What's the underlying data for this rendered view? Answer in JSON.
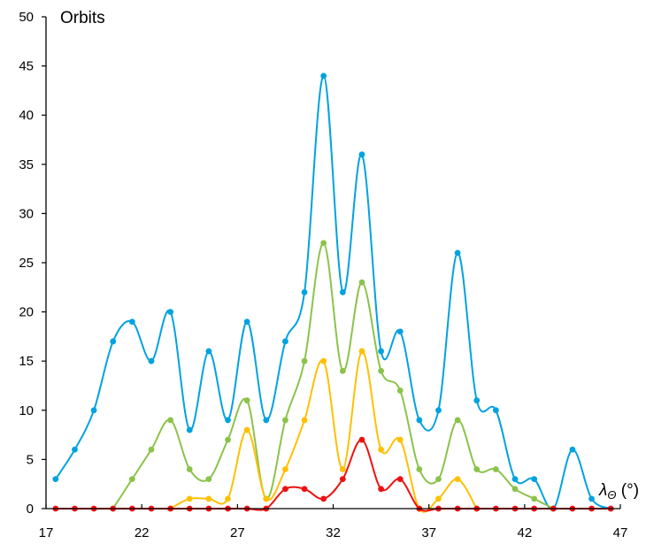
{
  "chart_data": {
    "type": "line",
    "title": "",
    "ylabel": "Orbits",
    "xlabel_symbol": "λ",
    "xlabel_subscript": "Θ",
    "xlabel_unit": " (°)",
    "xlim": [
      17,
      47
    ],
    "ylim": [
      0,
      50
    ],
    "xticks": [
      17,
      22,
      27,
      32,
      37,
      42,
      47
    ],
    "yticks": [
      0,
      5,
      10,
      15,
      20,
      25,
      30,
      35,
      40,
      45,
      50
    ],
    "grid": false,
    "smooth": true,
    "x": [
      17.5,
      18.5,
      19.5,
      20.5,
      21.5,
      22.5,
      23.5,
      24.5,
      25.5,
      26.5,
      27.5,
      28.5,
      29.5,
      30.5,
      31.5,
      32.5,
      33.5,
      34.5,
      35.5,
      36.5,
      37.5,
      38.5,
      39.5,
      40.5,
      41.5,
      42.5,
      43.5,
      44.5,
      45.5,
      46.5
    ],
    "series": [
      {
        "color": "#00A2E0",
        "values": [
          3,
          6,
          10,
          17,
          19,
          15,
          20,
          8,
          16,
          9,
          19,
          9,
          17,
          22,
          44,
          22,
          36,
          16,
          18,
          9,
          10,
          26,
          11,
          10,
          3,
          3,
          0,
          6,
          1,
          0
        ]
      },
      {
        "color": "#8BC34A",
        "values": [
          0,
          0,
          0,
          0,
          3,
          6,
          9,
          4,
          3,
          7,
          11,
          1,
          9,
          15,
          27,
          14,
          23,
          14,
          12,
          4,
          3,
          9,
          4,
          4,
          2,
          1,
          0,
          0,
          0,
          0
        ]
      },
      {
        "color": "#FFC000",
        "values": [
          0,
          0,
          0,
          0,
          0,
          0,
          0,
          1,
          1,
          1,
          8,
          1,
          4,
          9,
          15,
          4,
          16,
          6,
          7,
          0,
          1,
          3,
          0,
          0,
          0,
          0,
          0,
          0,
          0,
          0
        ]
      },
      {
        "color": "#EE1111",
        "values": [
          0,
          0,
          0,
          0,
          0,
          0,
          0,
          0,
          0,
          0,
          0,
          0,
          2,
          2,
          1,
          3,
          7,
          2,
          3,
          0,
          0,
          0,
          0,
          0,
          0,
          0,
          0,
          0,
          0,
          0
        ]
      }
    ]
  }
}
